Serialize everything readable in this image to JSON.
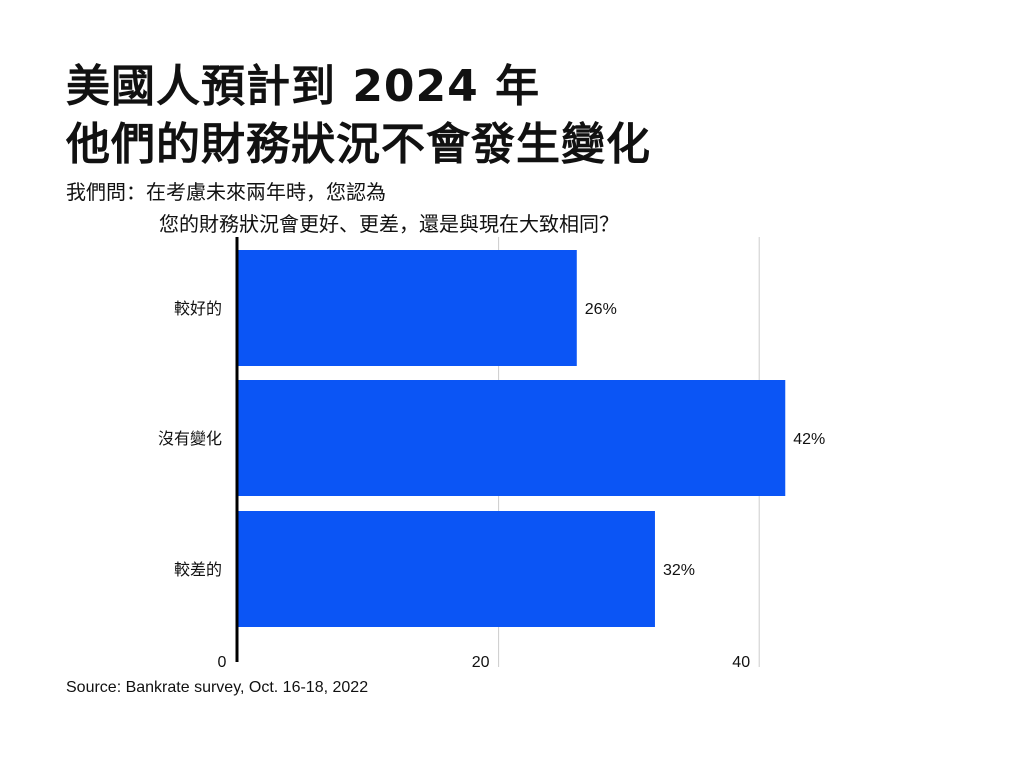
{
  "title_lines": [
    "美國人預計到 2024 年",
    "他們的財務狀況不會發生變化"
  ],
  "question_lines": [
    "我們問：在考慮未來兩年時，您認為",
    "您的財務狀況會更好、更差，還是與現在大致相同？"
  ],
  "source": "Source: Bankrate survey, Oct. 16-18, 2022",
  "colors": {
    "bar": "#0b55f5",
    "axis": "#000000",
    "grid": "#cccccc",
    "text": "#111111"
  },
  "chart_data": {
    "type": "bar",
    "orientation": "horizontal",
    "categories": [
      "較好的",
      "沒有變化",
      "較差的"
    ],
    "values": [
      26,
      42,
      32
    ],
    "data_labels": [
      "26%",
      "42%",
      "32%"
    ],
    "x_ticks": [
      0,
      20,
      40
    ],
    "x_tick_labels": [
      "0",
      "20",
      "40"
    ],
    "xlim": [
      0,
      45
    ],
    "grid": true
  }
}
